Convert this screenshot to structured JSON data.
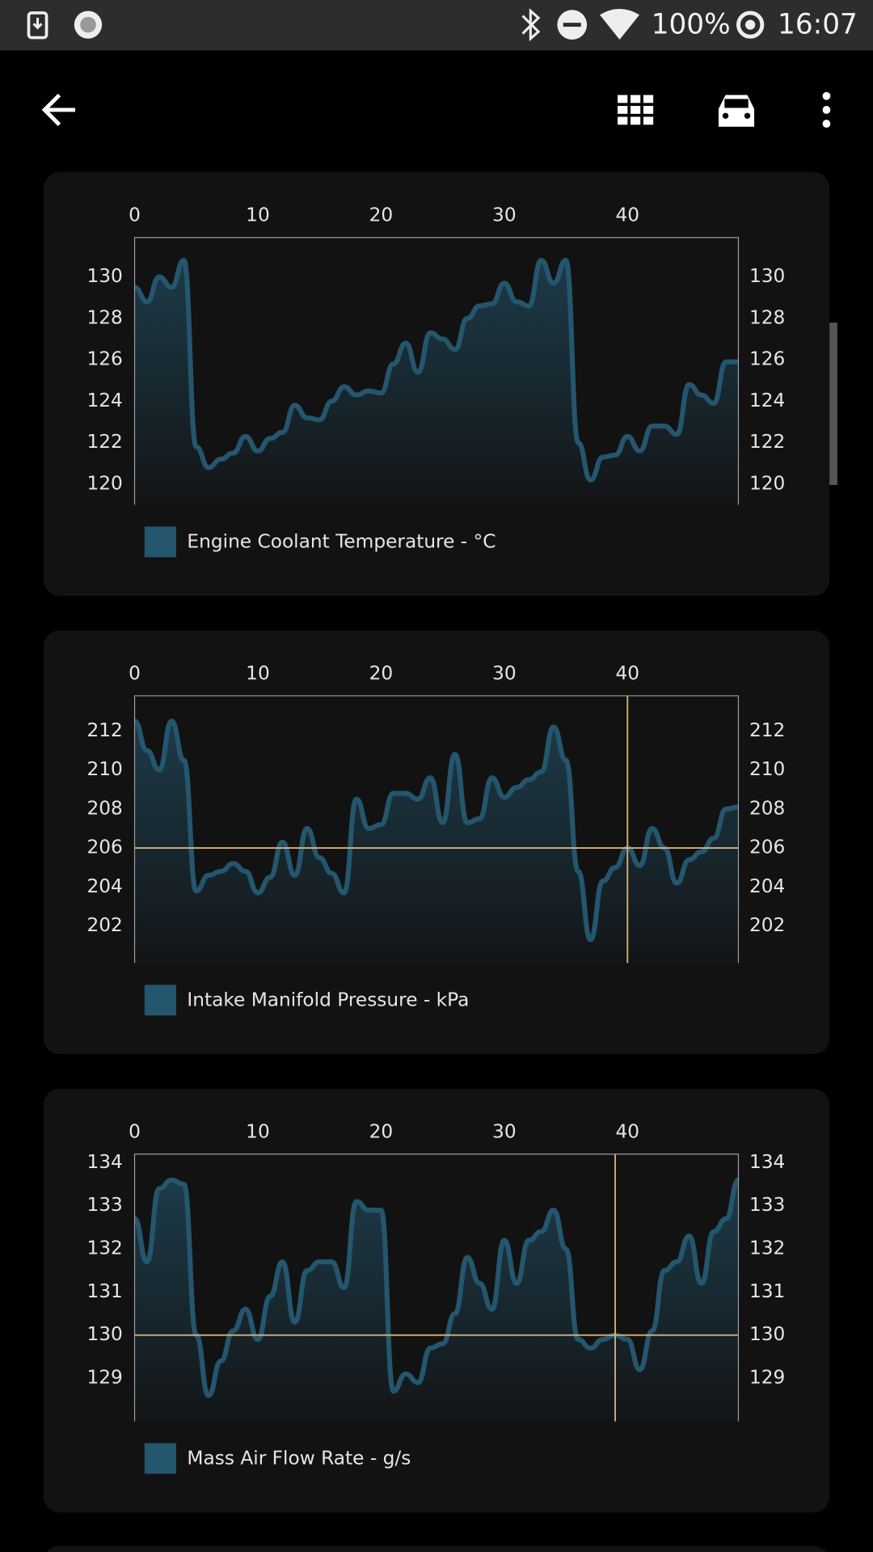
{
  "status_bar": {
    "battery": "100%",
    "time": "16:07"
  },
  "chart_data": [
    {
      "type": "area",
      "x": [
        0,
        1,
        2,
        3,
        4,
        5,
        6,
        7,
        8,
        9,
        10,
        11,
        12,
        13,
        14,
        15,
        16,
        17,
        18,
        19,
        20,
        21,
        22,
        23,
        24,
        25,
        26,
        27,
        28,
        29,
        30,
        31,
        32,
        33,
        34,
        35,
        36,
        37,
        38,
        39,
        40,
        41,
        42,
        43,
        44,
        45,
        46,
        47,
        48,
        49
      ],
      "series": [
        {
          "name": "Engine Coolant Temperature - °C",
          "color": "#24566d",
          "values": [
            129.5,
            128.8,
            130,
            129.5,
            130.8,
            121.8,
            120.8,
            121.2,
            121.5,
            122.3,
            121.6,
            122.2,
            122.5,
            123.8,
            123.2,
            123.1,
            124,
            124.7,
            124.3,
            124.5,
            124.4,
            125.8,
            126.8,
            125.4,
            127.3,
            127,
            126.5,
            128,
            128.6,
            128.7,
            129.7,
            128.8,
            128.6,
            130.8,
            129.7,
            130.8,
            122,
            120.2,
            121.3,
            121.4,
            122.3,
            121.6,
            122.8,
            122.8,
            122.4,
            124.8,
            124.3,
            123.9,
            125.9,
            125.9
          ]
        }
      ],
      "xlim": [
        0,
        49
      ],
      "xticks": [
        0,
        10,
        20,
        30,
        40
      ],
      "ylim": [
        119,
        131.9
      ],
      "yticks": [
        120,
        122,
        124,
        126,
        128,
        130
      ],
      "y2lim": [
        119,
        131.9
      ],
      "y2ticks": [
        120,
        122,
        124,
        126,
        128,
        130
      ]
    },
    {
      "type": "area",
      "x": [
        0,
        1,
        2,
        3,
        4,
        5,
        6,
        7,
        8,
        9,
        10,
        11,
        12,
        13,
        14,
        15,
        16,
        17,
        18,
        19,
        20,
        21,
        22,
        23,
        24,
        25,
        26,
        27,
        28,
        29,
        30,
        31,
        32,
        33,
        34,
        35,
        36,
        37,
        38,
        39,
        40,
        41,
        42,
        43,
        44,
        45,
        46,
        47,
        48,
        49
      ],
      "series": [
        {
          "name": "Intake Manifold Pressure - kPa",
          "color": "#24566d",
          "values": [
            212.5,
            211,
            210,
            212.5,
            210.5,
            203.8,
            204.6,
            204.8,
            205.2,
            204.8,
            203.7,
            204.5,
            206.3,
            204.6,
            207,
            205.5,
            204.7,
            203.7,
            208.5,
            207,
            207.2,
            208.8,
            208.8,
            208.5,
            209.6,
            207.3,
            210.8,
            207.3,
            207.5,
            209.6,
            208.6,
            209.1,
            209.5,
            209.9,
            212.2,
            210.5,
            204.8,
            201.3,
            204.3,
            205,
            206,
            205.1,
            207,
            206,
            204.2,
            205.4,
            205.8,
            206.5,
            208,
            208.1
          ]
        }
      ],
      "xlim": [
        0,
        49
      ],
      "xticks": [
        0,
        10,
        20,
        30,
        40
      ],
      "ylim": [
        200.1,
        213.8
      ],
      "yticks": [
        202,
        204,
        206,
        208,
        210,
        212
      ],
      "y2lim": [
        200.1,
        213.8
      ],
      "y2ticks": [
        202,
        204,
        206,
        208,
        210,
        212
      ],
      "crosshair": {
        "x": 40,
        "y": 206,
        "color": "#d9b27c"
      }
    },
    {
      "type": "area",
      "x": [
        0,
        1,
        2,
        3,
        4,
        5,
        6,
        7,
        8,
        9,
        10,
        11,
        12,
        13,
        14,
        15,
        16,
        17,
        18,
        19,
        20,
        21,
        22,
        23,
        24,
        25,
        26,
        27,
        28,
        29,
        30,
        31,
        32,
        33,
        34,
        35,
        36,
        37,
        38,
        39,
        40,
        41,
        42,
        43,
        44,
        45,
        46,
        47,
        48,
        49
      ],
      "series": [
        {
          "name": "Mass Air Flow Rate - g/s",
          "color": "#24566d",
          "values": [
            132.7,
            131.7,
            133.4,
            133.6,
            133.5,
            130,
            128.6,
            129.4,
            130.1,
            130.6,
            129.9,
            130.9,
            131.7,
            130.3,
            131.5,
            131.7,
            131.7,
            131.1,
            133.1,
            132.9,
            132.9,
            128.7,
            129.1,
            128.9,
            129.7,
            129.8,
            130.5,
            131.8,
            131.2,
            130.6,
            132.2,
            131.2,
            132.2,
            132.4,
            132.9,
            132,
            129.9,
            129.7,
            129.9,
            130,
            129.9,
            129.2,
            130.1,
            131.5,
            131.7,
            132.3,
            131.2,
            132.4,
            132.7,
            133.6
          ]
        }
      ],
      "xlim": [
        0,
        49
      ],
      "xticks": [
        0,
        10,
        20,
        30,
        40
      ],
      "ylim": [
        128,
        134.2
      ],
      "yticks": [
        129,
        130,
        131,
        132,
        133,
        134
      ],
      "y2lim": [
        128,
        134.2
      ],
      "y2ticks": [
        129,
        130,
        131,
        132,
        133,
        134
      ],
      "crosshair": {
        "x": 39,
        "y": 130,
        "color": "#d9b27c"
      }
    }
  ]
}
